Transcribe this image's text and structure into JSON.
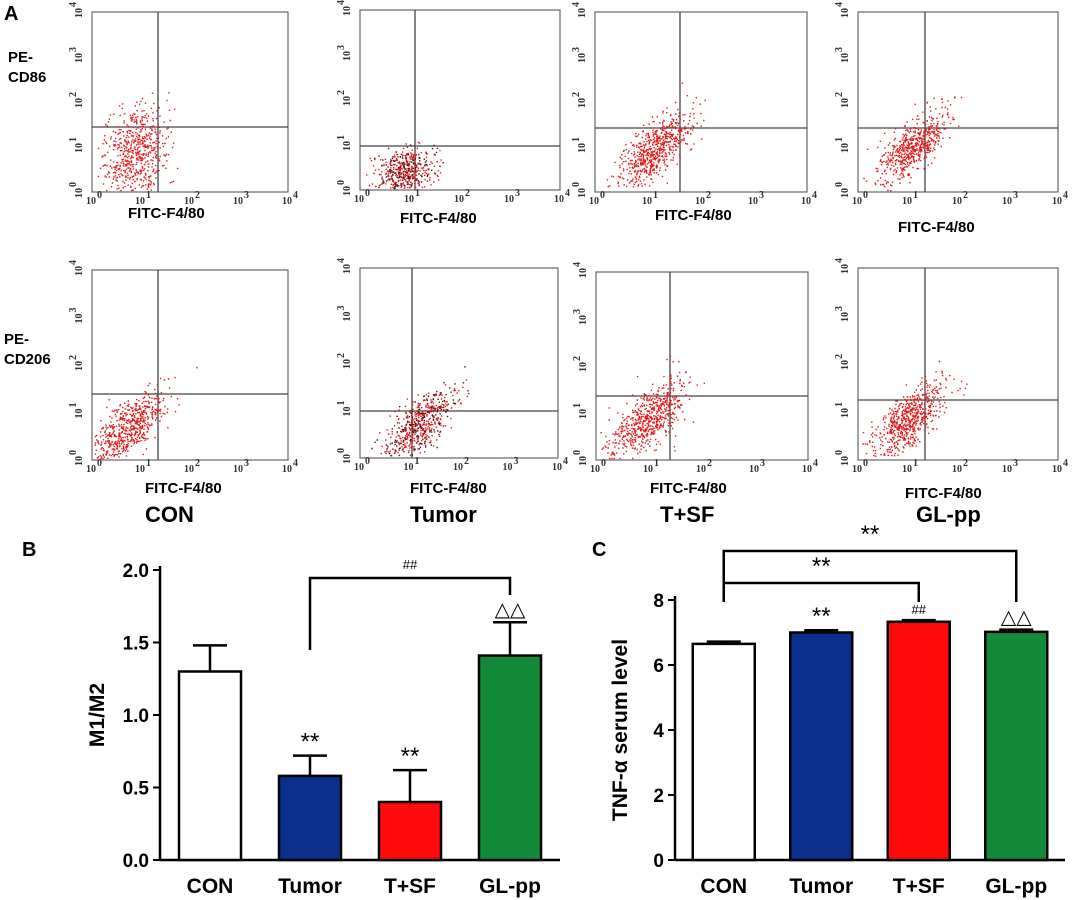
{
  "panel_labels": {
    "a": "A",
    "b": "B",
    "c": "C"
  },
  "row_labels": {
    "cd86_prefix": "PE-",
    "cd86": "CD86",
    "cd206_prefix": "PE-",
    "cd206": "CD206"
  },
  "flow_xlabel": "FITC-F4/80",
  "flow_group_labels": [
    "CON",
    "Tumor",
    "T+SF",
    "GL-pp"
  ],
  "flow_ticks": [
    "10",
    "0",
    "1",
    "2",
    "3",
    "4"
  ],
  "chart_data": [
    {
      "type": "bar",
      "title": "",
      "xlabel": "",
      "ylabel": "M1/M2",
      "categories": [
        "CON",
        "Tumor",
        "T+SF",
        "GL-pp"
      ],
      "values": [
        1.3,
        0.58,
        0.4,
        1.41
      ],
      "errors": [
        0.18,
        0.14,
        0.22,
        0.23
      ],
      "colors": [
        "#ffffff",
        "#0a2f8c",
        "#ff0a0a",
        "#138a3a"
      ],
      "ylim": [
        0,
        2.0
      ],
      "yticks": [
        "0.0",
        "0.5",
        "1.0",
        "1.5",
        "2.0"
      ],
      "bar_marks": [
        "",
        "**",
        "**",
        "△△"
      ],
      "brackets": [
        {
          "from": "Tumor",
          "to": "GL-pp",
          "label": "##"
        }
      ]
    },
    {
      "type": "bar",
      "title": "",
      "xlabel": "",
      "ylabel": "TNF-α serum level",
      "categories": [
        "CON",
        "Tumor",
        "T+SF",
        "GL-pp"
      ],
      "values": [
        6.65,
        7.0,
        7.33,
        7.02
      ],
      "errors": [
        0.07,
        0.07,
        0.05,
        0.07
      ],
      "colors": [
        "#ffffff",
        "#0a2f8c",
        "#ff0a0a",
        "#138a3a"
      ],
      "ylim": [
        0,
        8
      ],
      "yticks": [
        "0",
        "2",
        "4",
        "6",
        "8"
      ],
      "bar_marks": [
        "",
        "**",
        "##",
        "△△"
      ],
      "brackets": [
        {
          "from": "CON",
          "to": "T+SF",
          "label": "**"
        },
        {
          "from": "CON",
          "to": "GL-pp",
          "label": "**"
        }
      ]
    }
  ]
}
